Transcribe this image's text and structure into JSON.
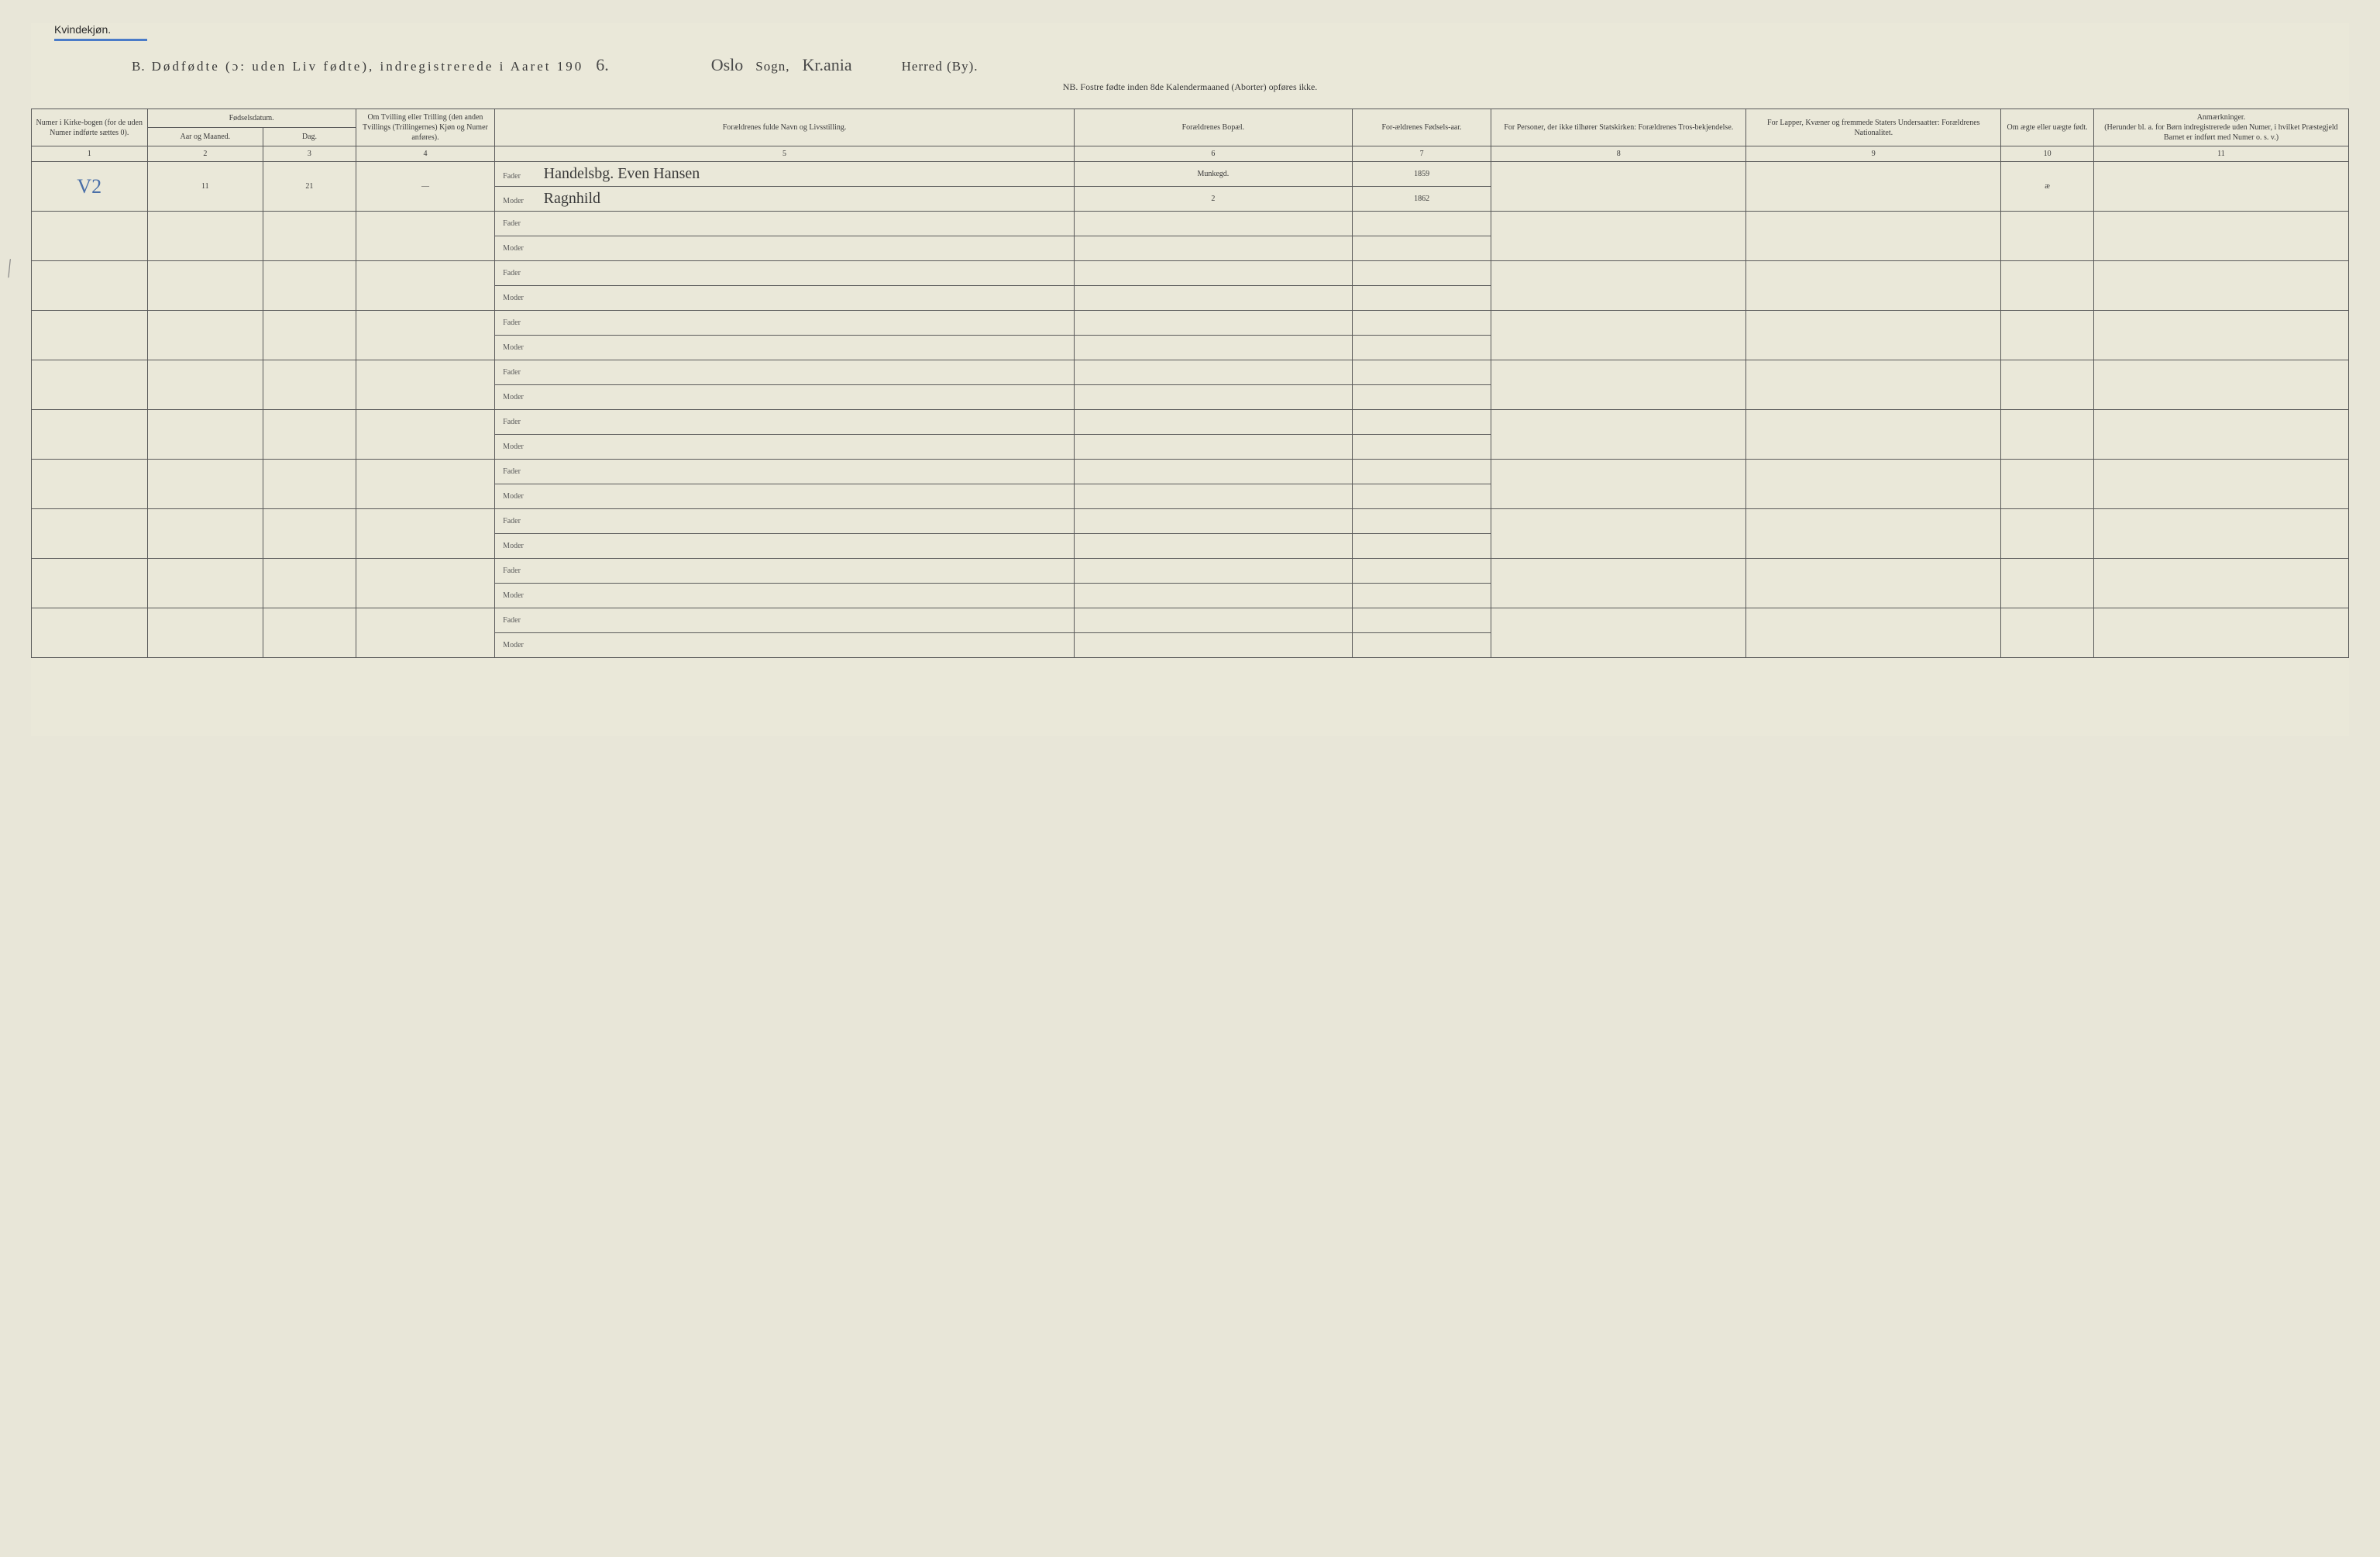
{
  "header": {
    "gender_label": "Kvindekjøn.",
    "title_prefix": "B.",
    "title_main": "Dødfødte (ɔ: uden Liv fødte), indregistrerede i Aaret 190",
    "year_suffix": "6.",
    "sogn_value": "Oslo",
    "sogn_label": "Sogn,",
    "herred_value": "Kr.ania",
    "herred_label": "Herred (By).",
    "subtitle": "NB. Fostre fødte inden 8de Kalendermaaned (Aborter) opføres ikke."
  },
  "columns": {
    "c1": "Numer i Kirke-bogen (for de uden Numer indførte sættes 0).",
    "c2_group": "Fødselsdatum.",
    "c2a": "Aar og Maaned.",
    "c2b": "Dag.",
    "c4": "Om Tvilling eller Trilling (den anden Tvillings (Trillingernes) Kjøn og Numer anføres).",
    "c5": "Forældrenes fulde Navn og Livsstilling.",
    "c6": "Forældrenes Bopæl.",
    "c7": "For-ældrenes Fødsels-aar.",
    "c8": "For Personer, der ikke tilhører Statskirken: Forældrenes Tros-bekjendelse.",
    "c9": "For Lapper, Kvæner og fremmede Staters Undersaatter: Forældrenes Nationalitet.",
    "c10": "Om ægte eller uægte født.",
    "c11": "Anmærkninger.",
    "c11_sub": "(Herunder bl. a. for Børn indregistrerede uden Numer, i hvilket Præstegjeld Barnet er indført med Numer o. s. v.)"
  },
  "colnums": [
    "1",
    "2",
    "3",
    "4",
    "5",
    "6",
    "7",
    "8",
    "9",
    "10",
    "11"
  ],
  "labels": {
    "fader": "Fader",
    "moder": "Moder"
  },
  "entry": {
    "numer": "V2",
    "month": "11",
    "day": "21",
    "twin": "—",
    "fader_name": "Handelsbg. Even Hansen",
    "fader_bopael": "Munkegd.",
    "fader_year": "1859",
    "moder_name": "Ragnhild",
    "moder_bopael": "2",
    "moder_year": "1862",
    "aegte": "æ"
  },
  "layout": {
    "col_widths_pct": [
      5,
      5,
      4,
      6,
      25,
      12,
      6,
      11,
      11,
      4,
      11
    ],
    "empty_rows": 9
  },
  "colors": {
    "background": "#eae8d9",
    "border": "#5a5a5a",
    "underline": "#4a7bc8",
    "script": "#3a3a3a"
  }
}
